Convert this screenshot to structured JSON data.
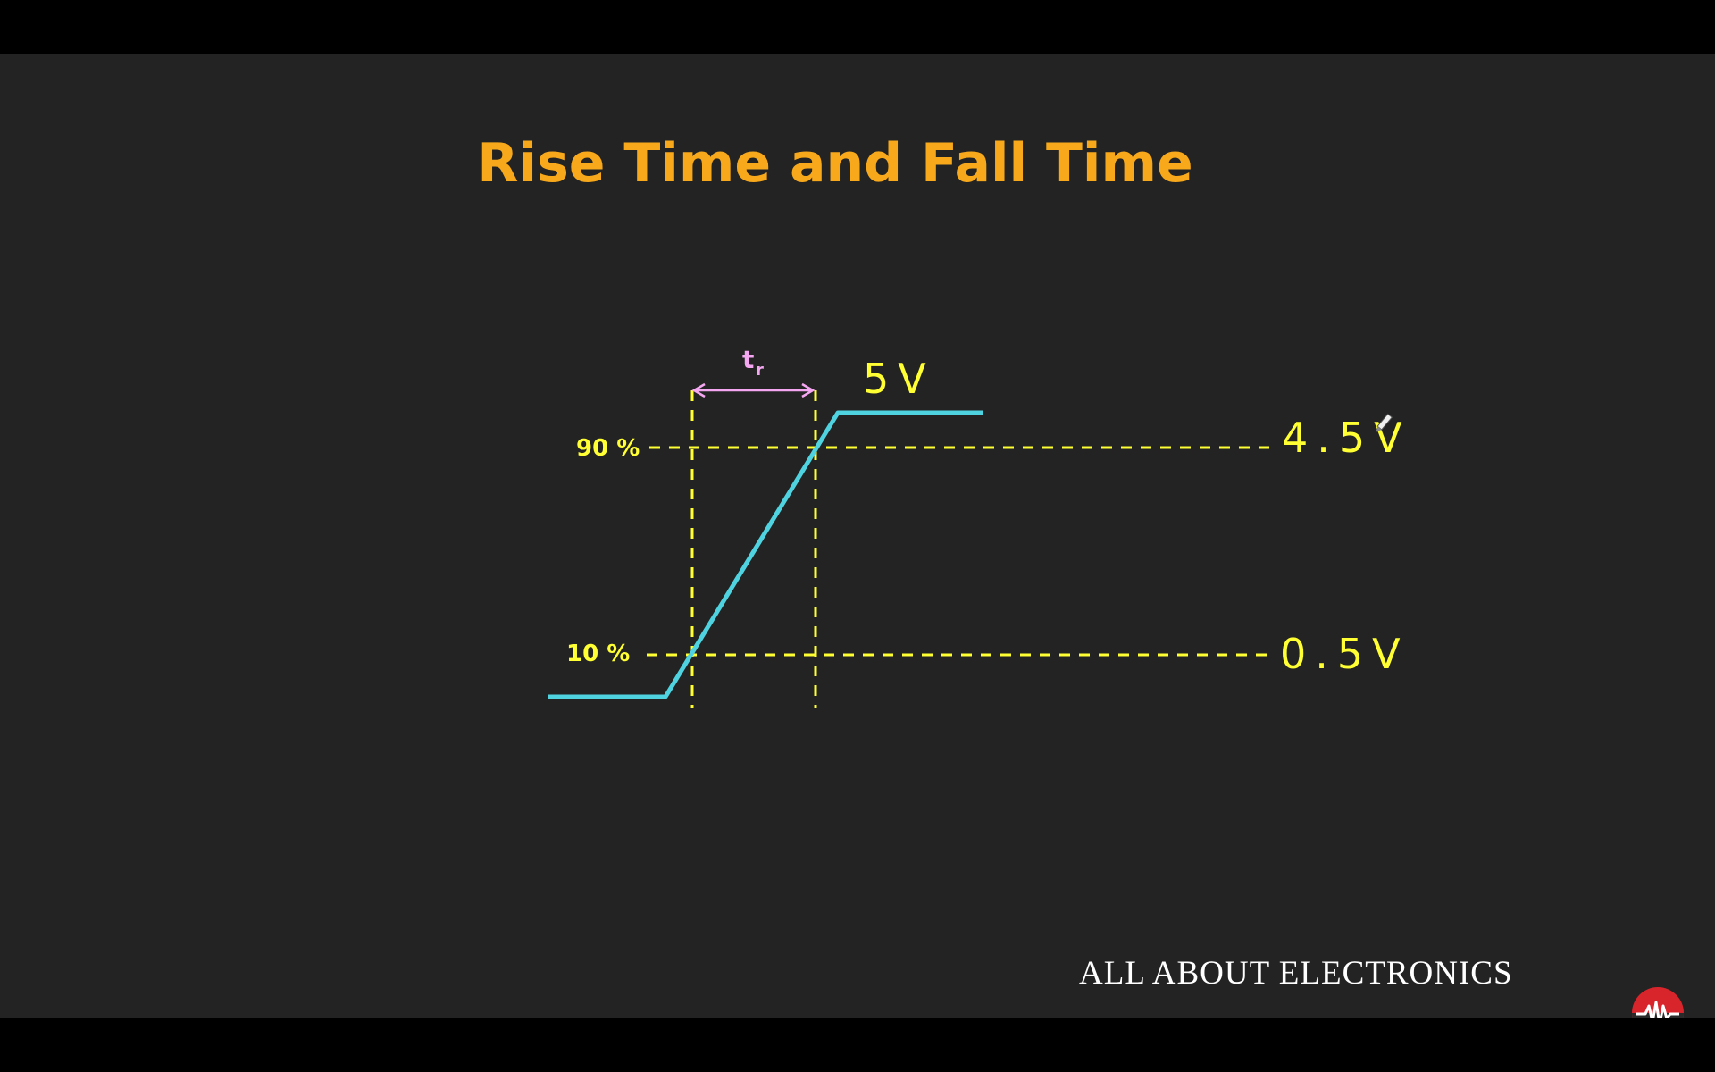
{
  "slide": {
    "title": "Rise Time and Fall Time",
    "brand": "ALL ABOUT ELECTRONICS",
    "logo_icon": "waveform-logo-icon"
  },
  "diagram": {
    "upper_threshold_label": "90 %",
    "lower_threshold_label": "10 %",
    "upper_voltage": "4.5V",
    "lower_voltage": "0.5V",
    "peak_voltage": "5V",
    "rise_time_symbol": "t",
    "rise_time_subscript": "r",
    "colors": {
      "title": "#f7a81b",
      "waveform": "#4fd3e0",
      "threshold": "#ffff33",
      "rise_time_marker": "#f4a7f0"
    }
  }
}
